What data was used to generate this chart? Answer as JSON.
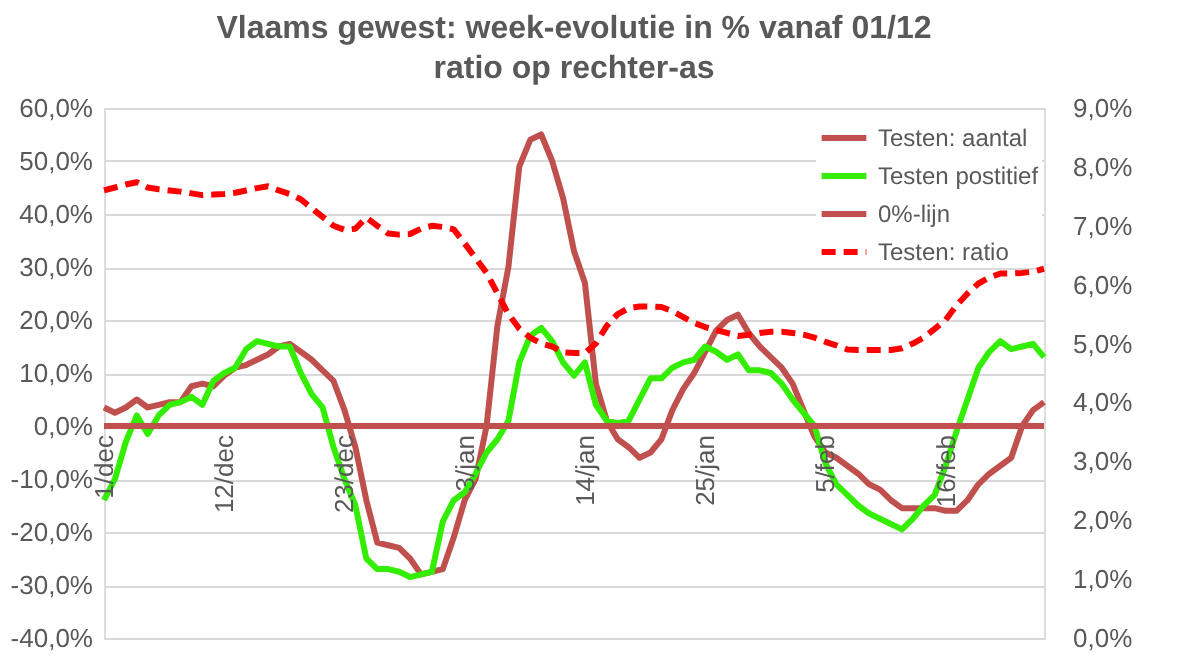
{
  "chart_data": {
    "type": "line",
    "title": "Vlaams gewest:  week-evolutie in %  vanaf 01/12",
    "subtitle": "ratio op rechter-as",
    "categories": [
      "1/dec",
      null,
      null,
      null,
      null,
      null,
      null,
      null,
      null,
      null,
      null,
      "12/dec",
      null,
      null,
      null,
      null,
      null,
      null,
      null,
      null,
      null,
      null,
      "23/dec",
      null,
      null,
      null,
      null,
      null,
      null,
      null,
      null,
      null,
      null,
      "3/jan",
      null,
      null,
      null,
      null,
      null,
      null,
      null,
      null,
      null,
      null,
      "14/jan",
      null,
      null,
      null,
      null,
      null,
      null,
      null,
      null,
      null,
      null,
      "25/jan",
      null,
      null,
      null,
      null,
      null,
      null,
      null,
      null,
      null,
      null,
      "5/feb",
      null,
      null,
      null,
      null,
      null,
      null,
      null,
      null,
      null,
      null,
      "16/feb",
      null,
      null,
      null,
      null,
      null,
      null,
      null,
      null,
      null
    ],
    "series": [
      {
        "name": "Testen: aantal",
        "color": "#c0504d",
        "line_style": "solid",
        "values": [
          3.5,
          2.5,
          3.5,
          5,
          3.5,
          4,
          4.5,
          4.5,
          7.5,
          8,
          7.5,
          9.5,
          11,
          11.5,
          12.5,
          13.5,
          15,
          15.5,
          14,
          12.5,
          10.5,
          8.5,
          3,
          -4,
          -14,
          -22,
          -22.5,
          -23,
          -25,
          -28,
          -27.5,
          -27,
          -21,
          -14,
          -10,
          0,
          19,
          30,
          49,
          54,
          55,
          50,
          43,
          33,
          27,
          8,
          1,
          -2.5,
          -4,
          -6,
          -5,
          -2.5,
          3,
          7,
          10,
          14,
          18,
          20,
          21,
          17.5,
          15,
          13,
          11,
          8,
          3,
          -2,
          -5,
          -6,
          -7.5,
          -9,
          -11,
          -12,
          -14,
          -15.5,
          -15.5,
          -15.5,
          -15.5,
          -16,
          -16,
          -14,
          -11,
          -9,
          -7.5,
          -6,
          0,
          3,
          4.5
        ]
      },
      {
        "name": "Testen postitief",
        "color": "#33ee00",
        "line_style": "solid",
        "values": [
          -14,
          -10,
          -3,
          2,
          -1.5,
          2,
          4,
          4.5,
          5.5,
          4,
          8.5,
          10,
          11,
          14.5,
          16,
          15.5,
          15,
          15,
          10,
          6,
          3.5,
          -4,
          -10,
          -15,
          -25,
          -27,
          -27,
          -27.5,
          -28.5,
          -28,
          -27.5,
          -18,
          -14,
          -12.5,
          -9,
          -5,
          -2.5,
          1,
          12,
          17,
          18.5,
          16,
          12,
          9.5,
          12,
          4,
          1,
          0.5,
          1,
          5,
          9,
          9,
          11,
          12,
          12.5,
          15,
          14,
          12.5,
          13.5,
          10.5,
          10.5,
          10,
          8,
          5,
          2.5,
          0,
          -7,
          -11,
          -13,
          -15,
          -16.5,
          -17.5,
          -18.5,
          -19.5,
          -17.5,
          -15,
          -13,
          -7.5,
          -1,
          5,
          11,
          14,
          16,
          14.5,
          15,
          15.5,
          13
        ]
      },
      {
        "name": "0%-lijn",
        "color": "#c0504d",
        "line_style": "solid",
        "values": [
          0,
          0,
          0,
          0,
          0,
          0,
          0,
          0,
          0,
          0,
          0,
          0,
          0,
          0,
          0,
          0,
          0,
          0,
          0,
          0,
          0,
          0,
          0,
          0,
          0,
          0,
          0,
          0,
          0,
          0,
          0,
          0,
          0,
          0,
          0,
          0,
          0,
          0,
          0,
          0,
          0,
          0,
          0,
          0,
          0,
          0,
          0,
          0,
          0,
          0,
          0,
          0,
          0,
          0,
          0,
          0,
          0,
          0,
          0,
          0,
          0,
          0,
          0,
          0,
          0,
          0,
          0,
          0,
          0,
          0,
          0,
          0,
          0,
          0,
          0,
          0,
          0,
          0,
          0,
          0,
          0,
          0,
          0,
          0,
          0,
          0,
          0
        ]
      },
      {
        "name": "Testen: ratio",
        "color": "#ff0000",
        "line_style": "dashed",
        "axis": "y2",
        "values": [
          7.6,
          7.65,
          7.7,
          7.74,
          7.65,
          7.62,
          7.6,
          7.58,
          7.55,
          7.52,
          7.53,
          7.54,
          7.56,
          7.6,
          7.64,
          7.67,
          7.6,
          7.54,
          7.45,
          7.3,
          7.15,
          7.0,
          6.93,
          6.95,
          7.14,
          7.0,
          6.87,
          6.85,
          6.86,
          6.95,
          7.0,
          6.98,
          6.94,
          6.7,
          6.45,
          6.2,
          5.85,
          5.5,
          5.25,
          5.1,
          5.0,
          4.95,
          4.85,
          4.84,
          4.84,
          5.0,
          5.3,
          5.5,
          5.6,
          5.63,
          5.63,
          5.62,
          5.55,
          5.45,
          5.35,
          5.28,
          5.23,
          5.18,
          5.13,
          5.15,
          5.18,
          5.2,
          5.2,
          5.18,
          5.15,
          5.1,
          5.03,
          4.97,
          4.9,
          4.89,
          4.89,
          4.89,
          4.89,
          4.92,
          5.0,
          5.1,
          5.25,
          5.4,
          5.65,
          5.85,
          6.02,
          6.12,
          6.19,
          6.19,
          6.2,
          6.22,
          6.27
        ]
      }
    ],
    "ylim": [
      -40,
      60
    ],
    "yticks": [
      {
        "value": -40,
        "label": "-40,0%"
      },
      {
        "value": -30,
        "label": "-30,0%"
      },
      {
        "value": -20,
        "label": "-20,0%"
      },
      {
        "value": -10,
        "label": "-10,0%"
      },
      {
        "value": 0,
        "label": "0,0%"
      },
      {
        "value": 10,
        "label": "10,0%"
      },
      {
        "value": 20,
        "label": "20,0%"
      },
      {
        "value": 30,
        "label": "30,0%"
      },
      {
        "value": 40,
        "label": "40,0%"
      },
      {
        "value": 50,
        "label": "50,0%"
      },
      {
        "value": 60,
        "label": "60,0%"
      }
    ],
    "y2lim": [
      0,
      9
    ],
    "y2ticks": [
      {
        "value": 0,
        "label": "0,0%"
      },
      {
        "value": 1,
        "label": "1,0%"
      },
      {
        "value": 2,
        "label": "2,0%"
      },
      {
        "value": 3,
        "label": "3,0%"
      },
      {
        "value": 4,
        "label": "4,0%"
      },
      {
        "value": 5,
        "label": "5,0%"
      },
      {
        "value": 6,
        "label": "6,0%"
      },
      {
        "value": 7,
        "label": "7,0%"
      },
      {
        "value": 8,
        "label": "8,0%"
      },
      {
        "value": 9,
        "label": "9,0%"
      }
    ],
    "grid": "y",
    "legend": "top right"
  }
}
